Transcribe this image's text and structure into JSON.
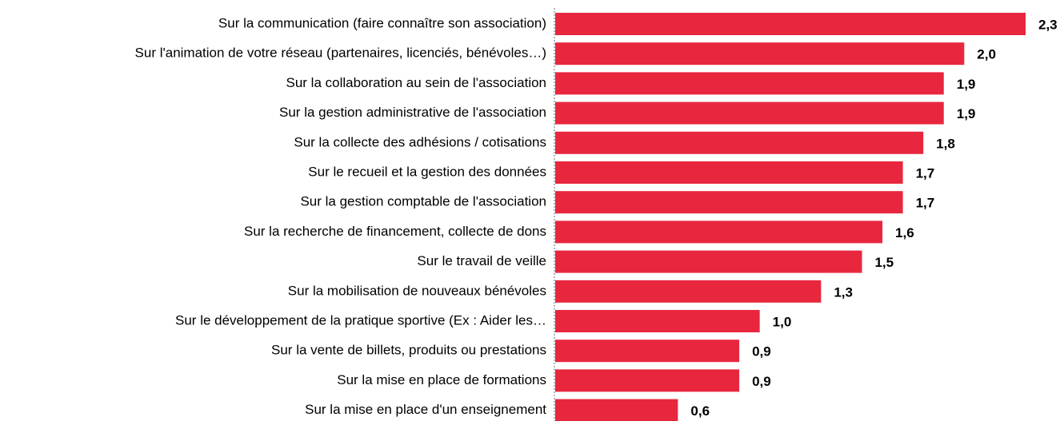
{
  "chart_data": {
    "type": "bar",
    "orientation": "horizontal",
    "color": "#e8273f",
    "categories": [
      "Sur la communication (faire connaître son association)",
      "Sur l'animation de votre réseau (partenaires, licenciés, bénévoles…)",
      "Sur la collaboration au sein de l'association",
      "Sur la gestion administrative de l'association",
      "Sur la collecte des adhésions / cotisations",
      "Sur le recueil et la gestion des données",
      "Sur la gestion comptable de l'association",
      "Sur la recherche de financement, collecte de dons",
      "Sur le travail de veille",
      "Sur la mobilisation de nouveaux bénévoles",
      "Sur le développement de la pratique sportive (Ex : Aider les…",
      "Sur la vente de billets, produits ou prestations",
      "Sur la mise en place de formations",
      "Sur la mise en place d'un enseignement"
    ],
    "values": [
      2.3,
      2.0,
      1.9,
      1.9,
      1.8,
      1.7,
      1.7,
      1.6,
      1.5,
      1.3,
      1.0,
      0.9,
      0.9,
      0.6
    ],
    "value_labels": [
      "2,3",
      "2,0",
      "1,9",
      "1,9",
      "1,8",
      "1,7",
      "1,7",
      "1,6",
      "1,5",
      "1,3",
      "1,0",
      "0,9",
      "0,9",
      "0,6"
    ]
  }
}
